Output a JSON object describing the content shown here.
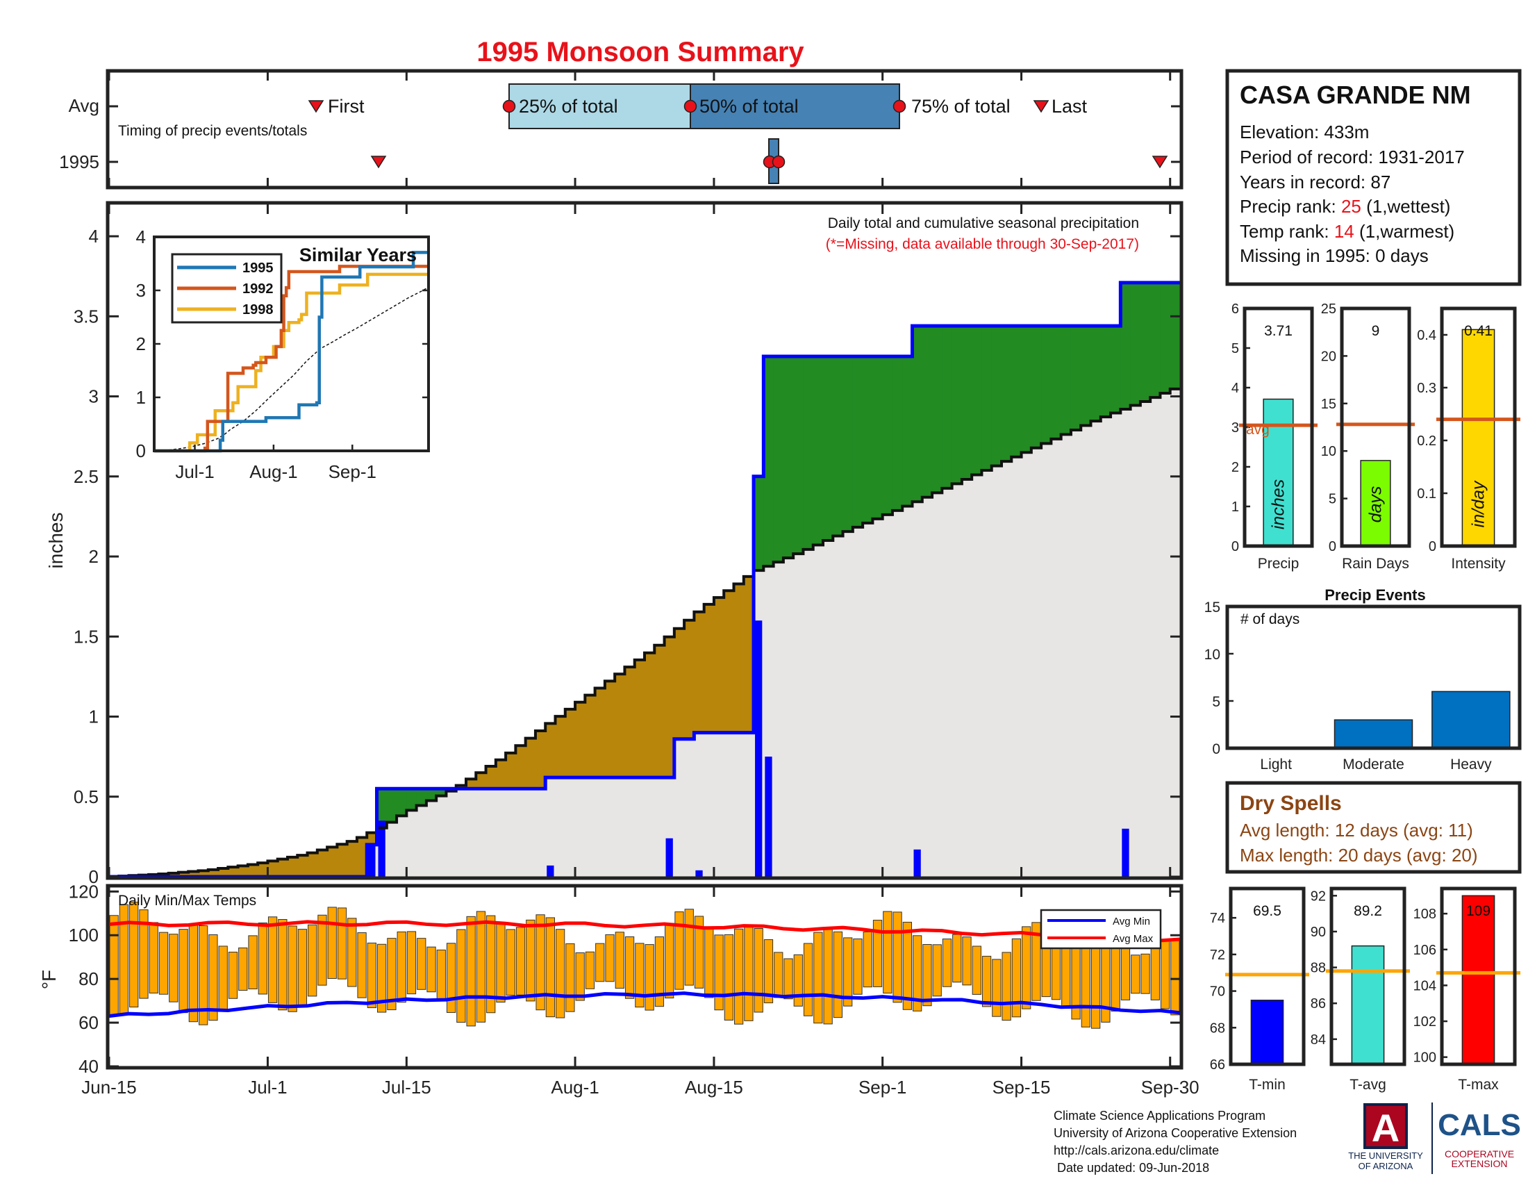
{
  "title": "1995 Monsoon Summary",
  "timing": {
    "rows": [
      "Avg",
      "1995"
    ],
    "caption": "Timing of precip events/totals",
    "avg_first": "First",
    "avg_last": "Last",
    "pct25": "25% of total",
    "pct50": "50% of total",
    "pct75": "75% of total"
  },
  "station": {
    "name": "CASA GRANDE NM",
    "elevation_label": "Elevation: 433m",
    "period_label": "Period of record: 1931-2017",
    "years_label": "Years in record: 87",
    "precip_rank_prefix": "Precip rank: ",
    "precip_rank_value": "25",
    "precip_rank_suffix": " (1,wettest)",
    "temp_rank_prefix": "Temp rank: ",
    "temp_rank_value": "14",
    "temp_rank_suffix": " (1,warmest)",
    "missing_label": "Missing in 1995: 0 days"
  },
  "main": {
    "ylabel": "inches",
    "annotation": "Daily total and cumulative seasonal precipitation",
    "missing_note": "(*=Missing, data available through 30-Sep-2017)"
  },
  "inset": {
    "title": "Similar Years",
    "legend": [
      "1995",
      "1992",
      "1998"
    ]
  },
  "temps": {
    "label": "Daily Min/Max Temps",
    "ylabel": "°F",
    "legend_min": "Avg Min",
    "legend_max": "Avg Max"
  },
  "events": {
    "title": "Precip Events",
    "note": "# of days"
  },
  "dry_spells": {
    "title": "Dry Spells",
    "avg": "Avg length: 12 days (avg: 11)",
    "max": "Max length: 20 days (avg: 20)"
  },
  "footer": {
    "lines": [
      "Climate Science Applications Program",
      "University of Arizona Cooperative Extension",
      "http://cals.arizona.edu/climate",
      " Date updated: 09-Jun-2018"
    ],
    "ua_top": "THE UNIVERSITY",
    "ua_bottom": "OF ARIZONA",
    "cals": "CALS",
    "coop1": "COOPERATIVE",
    "coop2": "EXTENSION",
    "ua_letter": "A"
  },
  "colors": {
    "title": "#e8121a",
    "blue_line": "#0000ff",
    "green_fill": "#228b22",
    "brown_fill": "#b8860b",
    "normal_fill": "#e8e6e4",
    "temp_bar": "#ffa500",
    "avg_line": "#d4561c"
  },
  "chart_data": [
    {
      "type": "area",
      "id": "cumulative",
      "x_dates": [
        "Jun-15",
        "Jul-1",
        "Jul-15",
        "Aug-1",
        "Aug-15",
        "Sep-1",
        "Sep-15",
        "Sep-30"
      ],
      "ylabel": "inches",
      "ylim": [
        0,
        4.2
      ],
      "yticks": [
        0,
        0.5,
        1,
        1.5,
        2,
        2.5,
        3,
        3.5,
        4
      ],
      "series": [
        {
          "name": "1995",
          "steps": [
            [
              0,
              0
            ],
            [
              26,
              0.2
            ],
            [
              27,
              0.55
            ],
            [
              43,
              0.55
            ],
            [
              44,
              0.62
            ],
            [
              56,
              0.62
            ],
            [
              57,
              0.86
            ],
            [
              59,
              0.9
            ],
            [
              64,
              0.9
            ],
            [
              65,
              2.5
            ],
            [
              66,
              3.25
            ],
            [
              80,
              3.25
            ],
            [
              81,
              3.44
            ],
            [
              101,
              3.44
            ],
            [
              102,
              3.71
            ],
            [
              108,
              3.71
            ]
          ]
        },
        {
          "normal": [
            [
              0,
              0
            ],
            [
              5,
              0.015
            ],
            [
              10,
              0.04
            ],
            [
              15,
              0.08
            ],
            [
              20,
              0.14
            ],
            [
              25,
              0.23
            ],
            [
              28,
              0.32
            ],
            [
              30,
              0.4
            ],
            [
              35,
              0.55
            ],
            [
              40,
              0.75
            ],
            [
              45,
              0.98
            ],
            [
              50,
              1.2
            ],
            [
              55,
              1.42
            ],
            [
              60,
              1.68
            ],
            [
              64,
              1.85
            ],
            [
              65,
              1.9
            ],
            [
              70,
              2.03
            ],
            [
              75,
              2.17
            ],
            [
              80,
              2.3
            ],
            [
              85,
              2.44
            ],
            [
              90,
              2.58
            ],
            [
              95,
              2.72
            ],
            [
              100,
              2.86
            ],
            [
              105,
              2.98
            ],
            [
              108,
              3.06
            ]
          ]
        }
      ],
      "daily_bars": [
        [
          26,
          0.2
        ],
        [
          27,
          0.35
        ],
        [
          44,
          0.07
        ],
        [
          56,
          0.24
        ],
        [
          59,
          0.04
        ],
        [
          65,
          1.6
        ],
        [
          66,
          0.75
        ],
        [
          81,
          0.17
        ],
        [
          102,
          0.3
        ]
      ]
    },
    {
      "type": "line",
      "id": "similar_years",
      "categories": [
        "Jul-1",
        "Aug-1",
        "Sep-1"
      ],
      "ylim": [
        0,
        4
      ],
      "series": [
        {
          "name": "1995",
          "steps": [
            [
              0,
              0
            ],
            [
              26,
              0.2
            ],
            [
              27,
              0.55
            ],
            [
              43,
              0.55
            ],
            [
              44,
              0.62
            ],
            [
              56,
              0.62
            ],
            [
              57,
              0.86
            ],
            [
              64,
              0.9
            ],
            [
              65,
              2.5
            ],
            [
              66,
              3.25
            ],
            [
              80,
              3.25
            ],
            [
              81,
              3.44
            ],
            [
              101,
              3.44
            ],
            [
              102,
              3.71
            ],
            [
              108,
              3.71
            ]
          ]
        },
        {
          "name": "1992",
          "steps": [
            [
              0,
              0
            ],
            [
              20,
              0.05
            ],
            [
              21,
              0.55
            ],
            [
              28,
              0.55
            ],
            [
              29,
              1.45
            ],
            [
              34,
              1.45
            ],
            [
              35,
              1.55
            ],
            [
              39,
              1.6
            ],
            [
              40,
              1.65
            ],
            [
              44,
              1.75
            ],
            [
              48,
              1.95
            ],
            [
              50,
              2.25
            ],
            [
              51,
              2.9
            ],
            [
              52,
              3.05
            ],
            [
              53,
              3.35
            ],
            [
              72,
              3.35
            ],
            [
              73,
              3.45
            ],
            [
              108,
              3.45
            ]
          ]
        },
        {
          "name": "1998",
          "steps": [
            [
              0,
              0
            ],
            [
              14,
              0.15
            ],
            [
              17,
              0.3
            ],
            [
              20,
              0.3
            ],
            [
              24,
              0.75
            ],
            [
              28,
              0.75
            ],
            [
              31,
              0.9
            ],
            [
              33,
              1.2
            ],
            [
              37,
              1.2
            ],
            [
              40,
              1.5
            ],
            [
              42,
              1.75
            ],
            [
              47,
              1.95
            ],
            [
              51,
              2.25
            ],
            [
              53,
              2.4
            ],
            [
              57,
              2.45
            ],
            [
              58,
              2.55
            ],
            [
              60,
              2.95
            ],
            [
              70,
              2.95
            ],
            [
              73,
              3.1
            ],
            [
              80,
              3.1
            ],
            [
              84,
              3.3
            ],
            [
              108,
              3.3
            ]
          ]
        }
      ]
    },
    {
      "type": "bar",
      "id": "daily_temps",
      "ylabel": "°F",
      "ylim": [
        40,
        122
      ],
      "yticks": [
        40,
        60,
        80,
        100,
        120
      ],
      "avg_max_start": 105,
      "avg_max_end": 98,
      "avg_min_start": 63,
      "avg_min_end": 61
    },
    {
      "type": "bar",
      "id": "precip",
      "categories": [
        "Precip"
      ],
      "values": [
        3.71
      ],
      "value_label": "3.71",
      "avg": 3.05,
      "avg_label": "avg",
      "ylim": [
        0,
        6
      ],
      "yticks": [
        0,
        1,
        2,
        3,
        4,
        5,
        6
      ],
      "unit": "inches",
      "color": "#40e0d0"
    },
    {
      "type": "bar",
      "id": "rain_days",
      "categories": [
        "Rain Days"
      ],
      "values": [
        9
      ],
      "value_label": "9",
      "avg": 12.8,
      "ylim": [
        0,
        25
      ],
      "yticks": [
        0,
        5,
        10,
        15,
        20,
        25
      ],
      "unit": "days",
      "color": "#7cfc00"
    },
    {
      "type": "bar",
      "id": "intensity",
      "categories": [
        "Intensity"
      ],
      "values": [
        0.41
      ],
      "value_label": "0.41",
      "avg": 0.24,
      "ylim": [
        0,
        0.45
      ],
      "yticks": [
        0,
        0.1,
        0.2,
        0.3,
        0.4
      ],
      "unit": "in/day",
      "color": "#ffd700"
    },
    {
      "type": "bar",
      "id": "precip_events",
      "title": "Precip Events",
      "categories": [
        "Light",
        "Moderate",
        "Heavy"
      ],
      "values": [
        0,
        3,
        6
      ],
      "ylim": [
        0,
        15
      ],
      "yticks": [
        0,
        5,
        10,
        15
      ],
      "color": "#0070c0"
    },
    {
      "type": "bar",
      "id": "tmin",
      "categories": [
        "T-min"
      ],
      "values": [
        69.5
      ],
      "value_label": "69.5",
      "avg": 70.9,
      "ylim": [
        66,
        75.6
      ],
      "yticks": [
        66,
        68,
        70,
        72,
        74
      ],
      "color": "#0000ff"
    },
    {
      "type": "bar",
      "id": "tavg",
      "categories": [
        "T-avg"
      ],
      "values": [
        89.2
      ],
      "value_label": "89.2",
      "avg": 87.8,
      "ylim": [
        82.6,
        92.4
      ],
      "yticks": [
        84,
        86,
        88,
        90,
        92
      ],
      "color": "#40e0d0"
    },
    {
      "type": "bar",
      "id": "tmax",
      "categories": [
        "T-max"
      ],
      "values": [
        109
      ],
      "value_label": "109",
      "avg": 104.7,
      "ylim": [
        99.6,
        109.4
      ],
      "yticks": [
        100,
        102,
        104,
        106,
        108
      ],
      "color": "#ff0000"
    }
  ]
}
